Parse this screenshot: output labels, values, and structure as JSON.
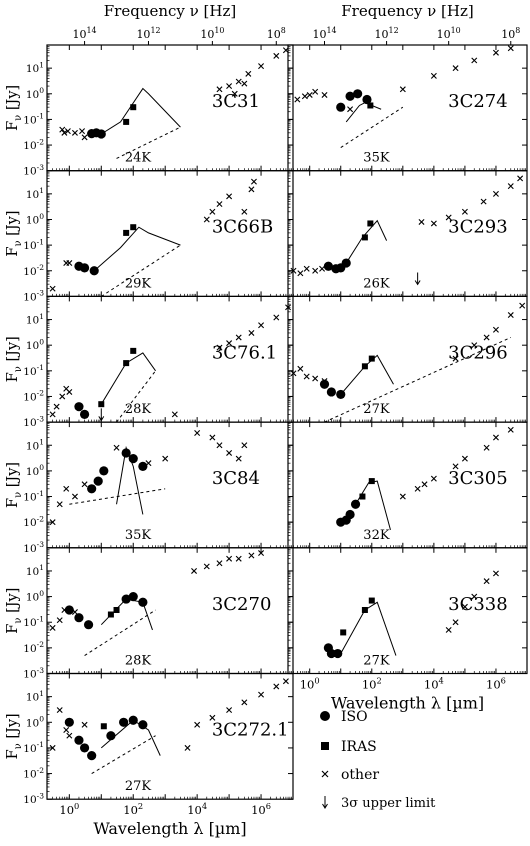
{
  "figure": {
    "top_axis_label": "Frequency ν [Hz]",
    "bottom_axis_label": "Wavelength λ  [µm]",
    "y_axis_label": "F",
    "y_axis_sub": "ν",
    "y_axis_unit": "[Jy]"
  },
  "axes": {
    "x_scale": "log",
    "y_scale": "log",
    "xlim_um": [
      0.2,
      10000000
    ],
    "ylim_jy": [
      0.001,
      80
    ],
    "x_ticks": [
      1,
      100,
      10000,
      1000000
    ],
    "x_tick_labels": [
      "10^0",
      "10^2",
      "10^4",
      "10^6"
    ],
    "freq_ticks_hz": [
      100000000000000,
      1000000000000,
      10000000000,
      100000000
    ],
    "freq_tick_labels": [
      "10^14",
      "10^12",
      "10^10",
      "10^8"
    ],
    "y_ticks": [
      0.001,
      0.01,
      0.1,
      1,
      10
    ],
    "y_tick_labels": [
      "10^-3",
      "10^-2",
      "10^-1",
      "10^0",
      "10^1"
    ]
  },
  "legend": {
    "position": "bottom-right",
    "items": [
      {
        "marker": "circle",
        "label": "ISO"
      },
      {
        "marker": "square",
        "label": "IRAS"
      },
      {
        "marker": "cross",
        "label": "other"
      },
      {
        "marker": "arrow",
        "label": "3σ upper limit"
      }
    ]
  },
  "chart_data": [
    {
      "type": "scatter",
      "name": "3C31",
      "temp_label": "24K",
      "iso": [
        [
          5,
          0.028
        ],
        [
          7,
          0.03
        ],
        [
          10,
          0.027
        ]
      ],
      "iras": [
        [
          60,
          0.08
        ],
        [
          100,
          0.3
        ]
      ],
      "other": [
        [
          0.6,
          0.04
        ],
        [
          0.9,
          0.035
        ],
        [
          1.5,
          0.03
        ],
        [
          2.5,
          0.035
        ],
        [
          0.7,
          0.03
        ],
        [
          3,
          0.02
        ],
        [
          50000,
          1.5
        ],
        [
          100000,
          2
        ],
        [
          200000,
          3
        ],
        [
          400000,
          6
        ],
        [
          1000000,
          12
        ],
        [
          3000000,
          30
        ],
        [
          6000000,
          50
        ],
        [
          150000,
          1
        ],
        [
          300000,
          2.5
        ]
      ],
      "dusty": [
        [
          5,
          0.028
        ],
        [
          10,
          0.027
        ],
        [
          40,
          0.08
        ],
        [
          200,
          1.6
        ],
        [
          300,
          1.0
        ],
        [
          3000,
          0.05
        ]
      ],
      "dashed": [
        [
          30,
          0.003
        ],
        [
          3000,
          0.05
        ]
      ]
    },
    {
      "type": "scatter",
      "name": "3C274",
      "temp_label": "35K",
      "iso": [
        [
          10,
          0.3
        ],
        [
          20,
          0.8
        ],
        [
          35,
          1.0
        ],
        [
          70,
          0.6
        ]
      ],
      "iras": [
        [
          90,
          0.35
        ]
      ],
      "other": [
        [
          0.4,
          0.6
        ],
        [
          0.7,
          0.8
        ],
        [
          1,
          0.9
        ],
        [
          1.5,
          1.2
        ],
        [
          3,
          0.9
        ],
        [
          20,
          0.25
        ],
        [
          1000,
          1.5
        ],
        [
          10000,
          5
        ],
        [
          50000,
          10
        ],
        [
          200000,
          20
        ],
        [
          1000000,
          40
        ],
        [
          3000000,
          60
        ]
      ],
      "dusty": [
        [
          15,
          0.08
        ],
        [
          40,
          0.35
        ],
        [
          60,
          0.45
        ],
        [
          200,
          0.25
        ]
      ],
      "dashed": [
        [
          10,
          0.008
        ],
        [
          1000,
          0.3
        ]
      ]
    },
    {
      "type": "scatter",
      "name": "3C66B",
      "temp_label": "29K",
      "iso": [
        [
          2,
          0.015
        ],
        [
          3,
          0.013
        ],
        [
          6,
          0.01
        ]
      ],
      "iras": [
        [
          60,
          0.3
        ],
        [
          100,
          0.5
        ]
      ],
      "other": [
        [
          0.3,
          0.002
        ],
        [
          0.8,
          0.02
        ],
        [
          1,
          0.02
        ],
        [
          20000,
          1
        ],
        [
          30000,
          2
        ],
        [
          50000,
          4
        ],
        [
          100000,
          8
        ],
        [
          500000,
          15
        ],
        [
          600000,
          30
        ],
        [
          300000,
          2
        ]
      ],
      "dusty": [
        [
          6,
          0.01
        ],
        [
          40,
          0.08
        ],
        [
          150,
          0.5
        ],
        [
          300,
          0.3
        ],
        [
          3000,
          0.1
        ]
      ],
      "dashed": [
        [
          10,
          0.001
        ],
        [
          3000,
          0.1
        ]
      ]
    },
    {
      "type": "scatter",
      "name": "3C293",
      "temp_label": "26K",
      "iso": [
        [
          4,
          0.015
        ],
        [
          7,
          0.012
        ],
        [
          10,
          0.013
        ],
        [
          15,
          0.02
        ]
      ],
      "iras": [
        [
          60,
          0.2
        ],
        [
          90,
          0.7
        ]
      ],
      "other": [
        [
          0.3,
          0.01
        ],
        [
          0.5,
          0.008
        ],
        [
          0.8,
          0.012
        ],
        [
          1.5,
          0.01
        ],
        [
          2.5,
          0.012
        ],
        [
          4000,
          0.8
        ],
        [
          10000,
          0.7
        ],
        [
          30000,
          1.2
        ],
        [
          100000,
          2
        ],
        [
          400000,
          5
        ],
        [
          1000000,
          10
        ],
        [
          3000000,
          20
        ],
        [
          6000000,
          40
        ]
      ],
      "dusty": [
        [
          15,
          0.02
        ],
        [
          50,
          0.2
        ],
        [
          150,
          0.9
        ],
        [
          300,
          0.15
        ]
      ],
      "upper": [
        [
          3000,
          0.005
        ]
      ]
    },
    {
      "type": "scatter",
      "name": "3C76.1",
      "temp_label": "28K",
      "iso": [
        [
          2,
          0.004
        ],
        [
          3,
          0.002
        ]
      ],
      "iras": [
        [
          10,
          0.005
        ],
        [
          60,
          0.2
        ],
        [
          100,
          0.6
        ]
      ],
      "other": [
        [
          0.3,
          0.002
        ],
        [
          0.4,
          0.004
        ],
        [
          0.6,
          0.01
        ],
        [
          0.8,
          0.02
        ],
        [
          1,
          0.015
        ],
        [
          2000,
          0.002
        ],
        [
          50000,
          0.8
        ],
        [
          100000,
          1.2
        ],
        [
          200000,
          2
        ],
        [
          500000,
          3
        ],
        [
          1000000,
          6
        ],
        [
          3000000,
          12
        ],
        [
          7000000,
          30
        ]
      ],
      "dusty": [
        [
          10,
          0.005
        ],
        [
          60,
          0.2
        ],
        [
          200,
          0.5
        ],
        [
          500,
          0.1
        ]
      ],
      "dashed": [
        [
          30,
          0.001
        ],
        [
          500,
          0.1
        ]
      ],
      "upper": [
        [
          10,
          0.002
        ]
      ]
    },
    {
      "type": "scatter",
      "name": "3C296",
      "temp_label": "27K",
      "iso": [
        [
          3,
          0.03
        ],
        [
          5,
          0.015
        ],
        [
          10,
          0.012
        ]
      ],
      "iras": [
        [
          60,
          0.15
        ],
        [
          100,
          0.3
        ]
      ],
      "other": [
        [
          0.3,
          0.08
        ],
        [
          0.5,
          0.12
        ],
        [
          0.8,
          0.06
        ],
        [
          1.5,
          0.05
        ],
        [
          3,
          0.04
        ],
        [
          50000,
          0.3
        ],
        [
          200000,
          1
        ],
        [
          500000,
          2
        ],
        [
          1000000,
          4
        ],
        [
          3000000,
          15
        ],
        [
          7000000,
          35
        ]
      ],
      "dusty": [
        [
          10,
          0.012
        ],
        [
          60,
          0.15
        ],
        [
          150,
          0.4
        ],
        [
          500,
          0.03
        ]
      ],
      "dashed": [
        [
          3,
          0.001
        ],
        [
          3000000,
          2
        ]
      ]
    },
    {
      "type": "scatter",
      "name": "3C84",
      "temp_label": "35K",
      "iso": [
        [
          5,
          0.2
        ],
        [
          8,
          0.4
        ],
        [
          12,
          1
        ],
        [
          60,
          5
        ],
        [
          100,
          3
        ],
        [
          200,
          1.5
        ]
      ],
      "other": [
        [
          0.3,
          0.01
        ],
        [
          0.5,
          0.05
        ],
        [
          0.8,
          0.2
        ],
        [
          1.5,
          0.1
        ],
        [
          3,
          0.3
        ],
        [
          30,
          8
        ],
        [
          300,
          2
        ],
        [
          1000,
          3
        ],
        [
          10000,
          30
        ],
        [
          30000,
          20
        ],
        [
          50000,
          10
        ],
        [
          100000,
          5
        ],
        [
          200000,
          3
        ],
        [
          300000,
          10
        ]
      ],
      "dusty": [
        [
          30,
          0.05
        ],
        [
          60,
          8
        ],
        [
          100,
          1.5
        ],
        [
          200,
          0.02
        ]
      ],
      "dashed": [
        [
          1,
          0.05
        ],
        [
          1000,
          0.2
        ]
      ]
    },
    {
      "type": "scatter",
      "name": "3C305",
      "temp_label": "32K",
      "iso": [
        [
          10,
          0.01
        ],
        [
          15,
          0.012
        ],
        [
          20,
          0.02
        ],
        [
          30,
          0.05
        ]
      ],
      "iras": [
        [
          50,
          0.1
        ],
        [
          100,
          0.4
        ]
      ],
      "other": [
        [
          1000,
          0.1
        ],
        [
          3000,
          0.2
        ],
        [
          5000,
          0.3
        ],
        [
          10000,
          0.5
        ],
        [
          50000,
          1.5
        ],
        [
          100000,
          3
        ],
        [
          500000,
          8
        ],
        [
          1000000,
          20
        ],
        [
          3000000,
          40
        ]
      ],
      "dusty": [
        [
          30,
          0.05
        ],
        [
          80,
          0.35
        ],
        [
          150,
          0.4
        ],
        [
          400,
          0.005
        ]
      ]
    },
    {
      "type": "scatter",
      "name": "3C270",
      "temp_label": "28K",
      "iso": [
        [
          1,
          0.3
        ],
        [
          2,
          0.15
        ],
        [
          4,
          0.08
        ],
        [
          60,
          0.8
        ],
        [
          100,
          1
        ],
        [
          200,
          0.6
        ]
      ],
      "iras": [
        [
          20,
          0.2
        ],
        [
          30,
          0.3
        ]
      ],
      "other": [
        [
          0.3,
          0.06
        ],
        [
          0.5,
          0.12
        ],
        [
          0.7,
          0.3
        ],
        [
          1.5,
          0.25
        ],
        [
          8000,
          10
        ],
        [
          20000,
          15
        ],
        [
          50000,
          20
        ],
        [
          100000,
          30
        ],
        [
          200000,
          30
        ],
        [
          500000,
          40
        ],
        [
          1000000,
          50
        ]
      ],
      "dusty": [
        [
          10,
          0.08
        ],
        [
          60,
          0.8
        ],
        [
          200,
          0.6
        ],
        [
          400,
          0.05
        ]
      ],
      "dashed": [
        [
          3,
          0.005
        ],
        [
          500,
          0.3
        ]
      ]
    },
    {
      "type": "scatter",
      "name": "3C338",
      "temp_label": "27K",
      "iso": [
        [
          4,
          0.01
        ],
        [
          5,
          0.006
        ],
        [
          8,
          0.006
        ]
      ],
      "iras": [
        [
          12,
          0.04
        ],
        [
          60,
          0.3
        ],
        [
          100,
          0.7
        ]
      ],
      "other": [
        [
          30000,
          0.05
        ],
        [
          50000,
          0.1
        ],
        [
          100000,
          0.4
        ],
        [
          200000,
          1
        ],
        [
          500000,
          4
        ],
        [
          1000000,
          8
        ]
      ],
      "dusty": [
        [
          10,
          0.006
        ],
        [
          60,
          0.3
        ],
        [
          150,
          0.6
        ],
        [
          600,
          0.005
        ]
      ]
    },
    {
      "type": "scatter",
      "name": "3C272.1",
      "temp_label": "27K",
      "iso": [
        [
          1,
          1
        ],
        [
          2,
          0.2
        ],
        [
          3,
          0.1
        ],
        [
          5,
          0.05
        ],
        [
          20,
          0.3
        ],
        [
          50,
          1
        ],
        [
          100,
          1.2
        ],
        [
          200,
          0.8
        ]
      ],
      "iras": [
        [
          12,
          0.7
        ]
      ],
      "other": [
        [
          0.3,
          0.1
        ],
        [
          0.5,
          3
        ],
        [
          0.8,
          0.5
        ],
        [
          1,
          0.3
        ],
        [
          3,
          0.8
        ],
        [
          5000,
          0.1
        ],
        [
          10000,
          0.8
        ],
        [
          30000,
          1.5
        ],
        [
          100000,
          3
        ],
        [
          300000,
          6
        ],
        [
          1000000,
          12
        ],
        [
          3000000,
          25
        ],
        [
          6000000,
          40
        ]
      ],
      "dusty": [
        [
          10,
          0.1
        ],
        [
          100,
          1.2
        ],
        [
          300,
          0.5
        ],
        [
          700,
          0.05
        ]
      ],
      "dashed": [
        [
          5,
          0.01
        ],
        [
          500,
          0.3
        ]
      ]
    }
  ]
}
